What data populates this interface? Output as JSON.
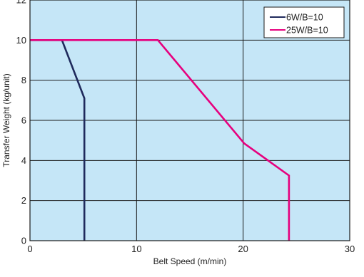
{
  "chart_data": {
    "type": "line",
    "title": "",
    "xlabel": "Belt Speed (m/min)",
    "ylabel": "Transfer Weight (kg/unit)",
    "xlim": [
      0,
      30
    ],
    "ylim": [
      0,
      12
    ],
    "xticks": [
      0,
      10,
      20,
      30
    ],
    "yticks": [
      0,
      2,
      4,
      6,
      8,
      10,
      12
    ],
    "grid": true,
    "legend_position": "top-right",
    "colors": {
      "background": "#c5e6f7",
      "grid": "#1a1a1a",
      "frame": "#1a1a1a"
    },
    "series": [
      {
        "name": "6W/B=10",
        "color": "#1f2a5c",
        "points": [
          [
            0,
            10
          ],
          [
            3,
            10
          ],
          [
            5.1,
            7.1
          ],
          [
            5.1,
            0
          ]
        ]
      },
      {
        "name": "25W/B=10",
        "color": "#e6007e",
        "points": [
          [
            0,
            10
          ],
          [
            12,
            10
          ],
          [
            20.1,
            4.85
          ],
          [
            24.3,
            3.25
          ],
          [
            24.3,
            0
          ]
        ]
      }
    ]
  }
}
